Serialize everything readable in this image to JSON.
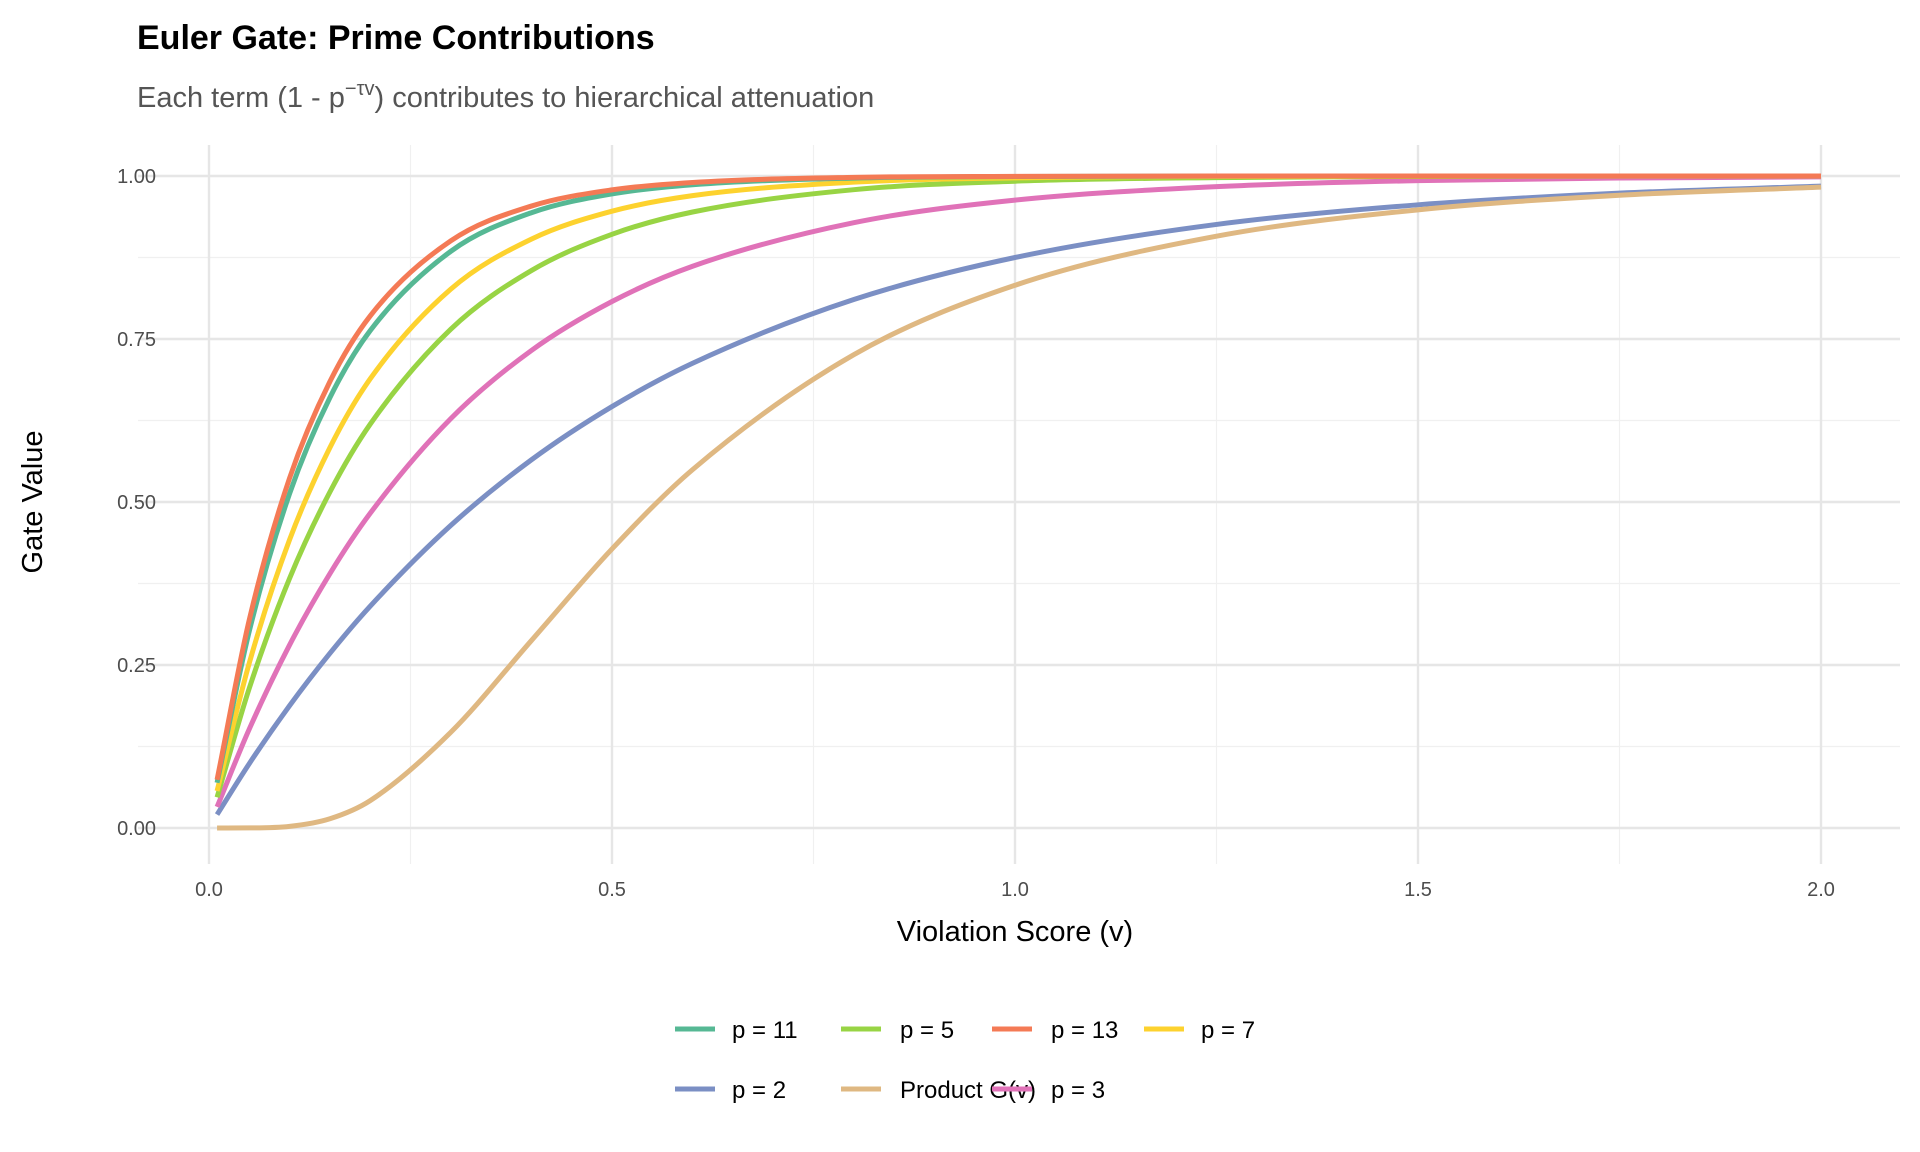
{
  "chart_data": {
    "type": "line",
    "title": "Euler Gate: Prime Contributions",
    "subtitle": {
      "before": "Each term (1 - p",
      "superscript": "−τv",
      "after": ") contributes to hierarchical attenuation"
    },
    "xlabel": "Violation Score (v)",
    "ylabel": "Gate Value",
    "xlim": [
      -0.05,
      2.1
    ],
    "ylim": [
      -0.05,
      1.05
    ],
    "x_ticks": [
      "0.0",
      "0.5",
      "1.0",
      "1.5",
      "2.0"
    ],
    "x_tick_values": [
      0,
      0.5,
      1.0,
      1.5,
      2.0
    ],
    "y_ticks": [
      "0.00",
      "0.25",
      "0.50",
      "0.75",
      "1.00"
    ],
    "y_tick_values": [
      0,
      0.25,
      0.5,
      0.75,
      1.0
    ],
    "grid": true,
    "legend_placement": "bottom",
    "x": [
      0.01,
      0.05,
      0.1,
      0.15,
      0.2,
      0.3,
      0.4,
      0.5,
      0.6,
      0.8,
      1.0,
      1.25,
      1.5,
      1.75,
      2.0
    ],
    "series": [
      {
        "name": "p = 11",
        "color": "#56B894",
        "values": [
          0.0694,
          0.3021,
          0.5129,
          0.6601,
          0.7628,
          0.8845,
          0.9437,
          0.9726,
          0.9866,
          0.9968,
          0.9992,
          0.9999,
          1.0,
          1.0,
          1.0
        ]
      },
      {
        "name": "p = 2",
        "color": "#7B8FC4",
        "values": [
          0.0206,
          0.0988,
          0.1877,
          0.2679,
          0.3402,
          0.4641,
          0.5647,
          0.6464,
          0.7128,
          0.8105,
          0.875,
          0.9257,
          0.9558,
          0.9737,
          0.9844
        ]
      },
      {
        "name": "p = 5",
        "color": "#98D444",
        "values": [
          0.0471,
          0.2145,
          0.383,
          0.5153,
          0.6193,
          0.7651,
          0.855,
          0.9106,
          0.9448,
          0.979,
          0.992,
          0.9976,
          0.9993,
          0.9998,
          0.9999
        ]
      },
      {
        "name": "Product G(v)",
        "color": "#DFB882",
        "values": [
          0.0,
          0.0001,
          0.0025,
          0.0142,
          0.042,
          0.1468,
          0.2875,
          0.428,
          0.5497,
          0.7259,
          0.8324,
          0.9077,
          0.9481,
          0.9705,
          0.9829
        ]
      },
      {
        "name": "p = 13",
        "color": "#F47A55",
        "values": [
          0.074,
          0.3194,
          0.5368,
          0.6847,
          0.7854,
          0.9006,
          0.9539,
          0.9787,
          0.9901,
          0.9979,
          0.9995,
          1.0,
          1.0,
          1.0,
          1.0
        ]
      },
      {
        "name": "p = 3",
        "color": "#E072B8",
        "values": [
          0.0324,
          0.1519,
          0.2808,
          0.3901,
          0.4827,
          0.6279,
          0.7324,
          0.8075,
          0.8616,
          0.9284,
          0.963,
          0.9837,
          0.9929,
          0.9969,
          0.9986
        ]
      },
      {
        "name": "p = 7",
        "color": "#FDD22E",
        "values": [
          0.0567,
          0.2531,
          0.4422,
          0.5834,
          0.6889,
          0.8265,
          0.9032,
          0.946,
          0.9699,
          0.9906,
          0.9971,
          0.9993,
          0.9998,
          1.0,
          1.0
        ]
      }
    ],
    "draw_order": [
      "p = 2",
      "p = 3",
      "p = 5",
      "p = 7",
      "p = 11",
      "p = 13",
      "Product G(v)"
    ]
  }
}
